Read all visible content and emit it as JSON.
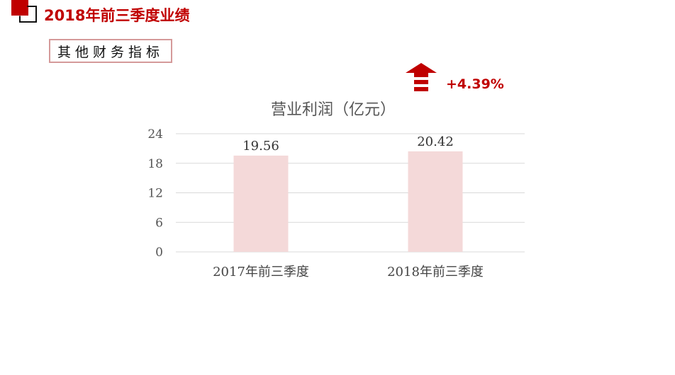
{
  "header": {
    "title": "2018年前三季度业绩"
  },
  "section": {
    "label": "其他财务指标"
  },
  "growth": {
    "value": "+4.39%",
    "icon": "up-arrow-icon",
    "color": "#c00000"
  },
  "chart_data": {
    "type": "bar",
    "title": "营业利润（亿元）",
    "categories": [
      "2017年前三季度",
      "2018年前三季度"
    ],
    "values": [
      19.56,
      20.42
    ],
    "data_labels": [
      "19.56",
      "20.42"
    ],
    "ylim": [
      0,
      24
    ],
    "yticks": [
      0,
      6,
      12,
      18,
      24
    ],
    "grid": true,
    "bar_color": "#f4d9d9"
  }
}
